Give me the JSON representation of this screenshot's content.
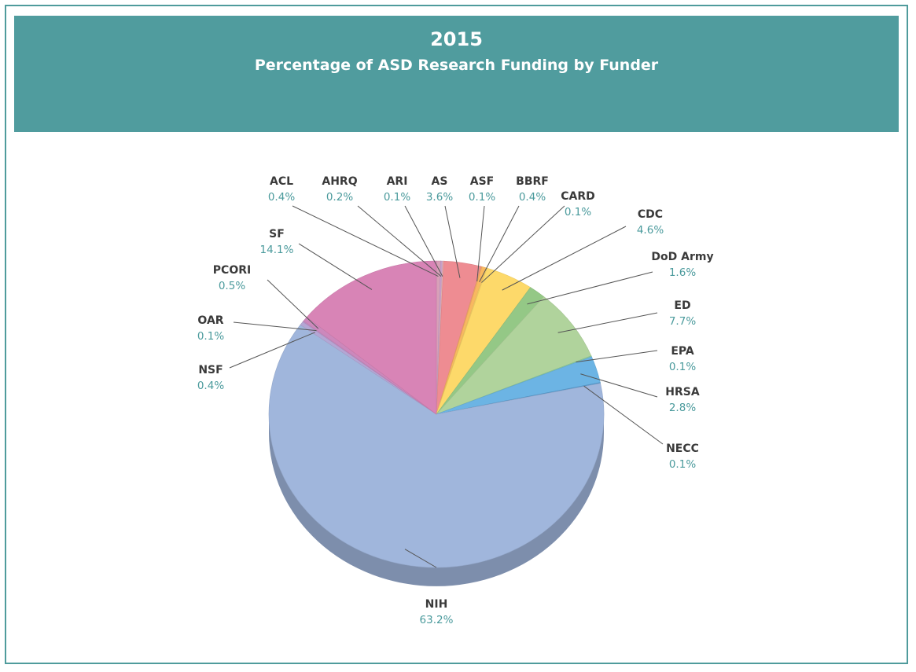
{
  "header": {
    "year": "2015",
    "title": "Percentage of ASD Research Funding by Funder"
  },
  "colors": {
    "frame": "#4f9b9c",
    "banner": "#509c9e",
    "value_text": "#4a9a9c"
  },
  "chart_data": {
    "type": "pie",
    "title": "2015",
    "subtitle": "Percentage of ASD Research Funding by Funder",
    "unit": "%",
    "legend": "none",
    "slices": [
      {
        "name": "ACL",
        "label": "0.4%",
        "value": 0.4,
        "color": "#d8a0b8"
      },
      {
        "name": "AHRQ",
        "label": "0.2%",
        "value": 0.2,
        "color": "#c8a0c8"
      },
      {
        "name": "ARI",
        "label": "0.1%",
        "value": 0.1,
        "color": "#e8b8b8"
      },
      {
        "name": "AS",
        "label": "3.6%",
        "value": 3.6,
        "color": "#ee8c92"
      },
      {
        "name": "ASF",
        "label": "0.1%",
        "value": 0.1,
        "color": "#f2a070"
      },
      {
        "name": "BBRF",
        "label": "0.4%",
        "value": 0.4,
        "color": "#f8b860"
      },
      {
        "name": "CARD",
        "label": "0.1%",
        "value": 0.1,
        "color": "#f6cc66"
      },
      {
        "name": "CDC",
        "label": "4.6%",
        "value": 4.6,
        "color": "#fdd96a"
      },
      {
        "name": "DoD Army",
        "label": "1.6%",
        "value": 1.6,
        "color": "#94c886"
      },
      {
        "name": "ED",
        "label": "7.7%",
        "value": 7.7,
        "color": "#b0d39c"
      },
      {
        "name": "EPA",
        "label": "0.1%",
        "value": 0.1,
        "color": "#8ccc9c"
      },
      {
        "name": "HRSA",
        "label": "2.8%",
        "value": 2.8,
        "color": "#6cb4e4"
      },
      {
        "name": "NECC",
        "label": "0.1%",
        "value": 0.1,
        "color": "#5a9cd0"
      },
      {
        "name": "NIH",
        "label": "63.2%",
        "value": 63.2,
        "color": "#a0b6dc"
      },
      {
        "name": "NSF",
        "label": "0.4%",
        "value": 0.4,
        "color": "#b4a6d4"
      },
      {
        "name": "OAR",
        "label": "0.1%",
        "value": 0.1,
        "color": "#c094c8"
      },
      {
        "name": "PCORI",
        "label": "0.5%",
        "value": 0.5,
        "color": "#cc88bc"
      },
      {
        "name": "SF",
        "label": "14.1%",
        "value": 14.1,
        "color": "#d884b6"
      }
    ]
  }
}
